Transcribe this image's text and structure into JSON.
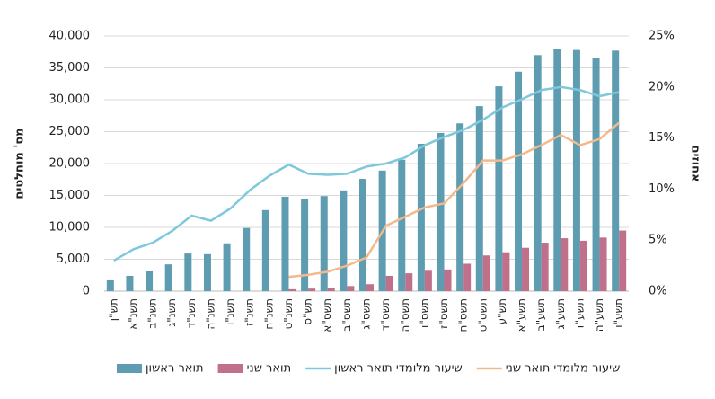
{
  "chart_data": {
    "type": "bar_line",
    "y_label": "מס' מוחלטים",
    "y2_label": "אחוזים",
    "categories": [
      "תש\"ן",
      "תשנ\"א",
      "תשנ\"ב",
      "תשנ\"ג",
      "תשנ\"ד",
      "תשנ\"ה",
      "תשנ\"ו",
      "תשנ\"ז",
      "תשנ\"ח",
      "תשנ\"ט",
      "תש\"ס",
      "תשס\"א",
      "תשס\"ב",
      "תשס\"ג",
      "תשס\"ד",
      "תשס\"ה",
      "תשס\"ו",
      "תשס\"ז",
      "תשס\"ח",
      "תשס\"ט",
      "תש\"ע",
      "תשע\"א",
      "תשע\"ב",
      "תשע\"ג",
      "תשע\"ד",
      "תשע\"ה",
      "תשע\"ו"
    ],
    "series": [
      {
        "name": "תואר ראשון",
        "kind": "bar",
        "color": "#5e9cb1",
        "values": [
          1700,
          2400,
          3100,
          4200,
          5900,
          5800,
          7500,
          9900,
          12700,
          14800,
          14500,
          14900,
          15800,
          17600,
          18900,
          20600,
          23100,
          24800,
          26300,
          29000,
          32100,
          34400,
          37000,
          38000,
          37800,
          36600,
          37700
        ]
      },
      {
        "name": "תואר שני",
        "kind": "bar",
        "color": "#c0708b",
        "values": [
          null,
          null,
          null,
          null,
          null,
          null,
          null,
          null,
          null,
          300,
          400,
          500,
          800,
          1100,
          2400,
          2800,
          3200,
          3400,
          4300,
          5600,
          6100,
          6800,
          7600,
          8300,
          7900,
          8400,
          9500
        ]
      },
      {
        "name": "שיעור מלומדי תואר ראשון",
        "kind": "line",
        "axis": "y2",
        "color": "#7ec8dc",
        "values": [
          3.0,
          4.1,
          4.75,
          5.9,
          7.4,
          6.9,
          8.1,
          9.9,
          11.3,
          12.4,
          11.5,
          11.4,
          11.5,
          12.2,
          12.5,
          13.1,
          14.3,
          15.1,
          15.8,
          16.8,
          18.0,
          18.8,
          19.7,
          20.0,
          19.7,
          19.1,
          19.5
        ]
      },
      {
        "name": "שיעור מלומדי תואר שני",
        "kind": "line",
        "axis": "y2",
        "color": "#f2b98a",
        "values": [
          null,
          null,
          null,
          null,
          null,
          null,
          null,
          null,
          null,
          1.4,
          1.6,
          1.9,
          2.5,
          3.3,
          6.4,
          7.3,
          8.2,
          8.6,
          10.6,
          12.8,
          12.8,
          13.4,
          14.3,
          15.3,
          14.3,
          14.9,
          16.5
        ]
      }
    ],
    "ylim": [
      0,
      40000
    ],
    "yticks": [
      0,
      {
        "value": 5000,
        "label": "5,000"
      },
      {
        "value": 10000,
        "label": "10,000"
      },
      {
        "value": 15000,
        "label": "15,000"
      },
      {
        "value": 20000,
        "label": "20,000"
      },
      {
        "value": 25000,
        "label": "25,000"
      },
      {
        "value": 30000,
        "label": "30,000"
      },
      {
        "value": 35000,
        "label": "35,000"
      },
      {
        "value": 40000,
        "label": "40,000"
      }
    ],
    "y2lim": [
      0,
      25
    ],
    "y2ticks": [
      {
        "value": 0,
        "label": "0%"
      },
      {
        "value": 5,
        "label": "5%"
      },
      {
        "value": 10,
        "label": "10%"
      },
      {
        "value": 15,
        "label": "15%"
      },
      {
        "value": 20,
        "label": "20%"
      },
      {
        "value": 25,
        "label": "25%"
      }
    ],
    "grid": true,
    "legend": "bottom"
  }
}
